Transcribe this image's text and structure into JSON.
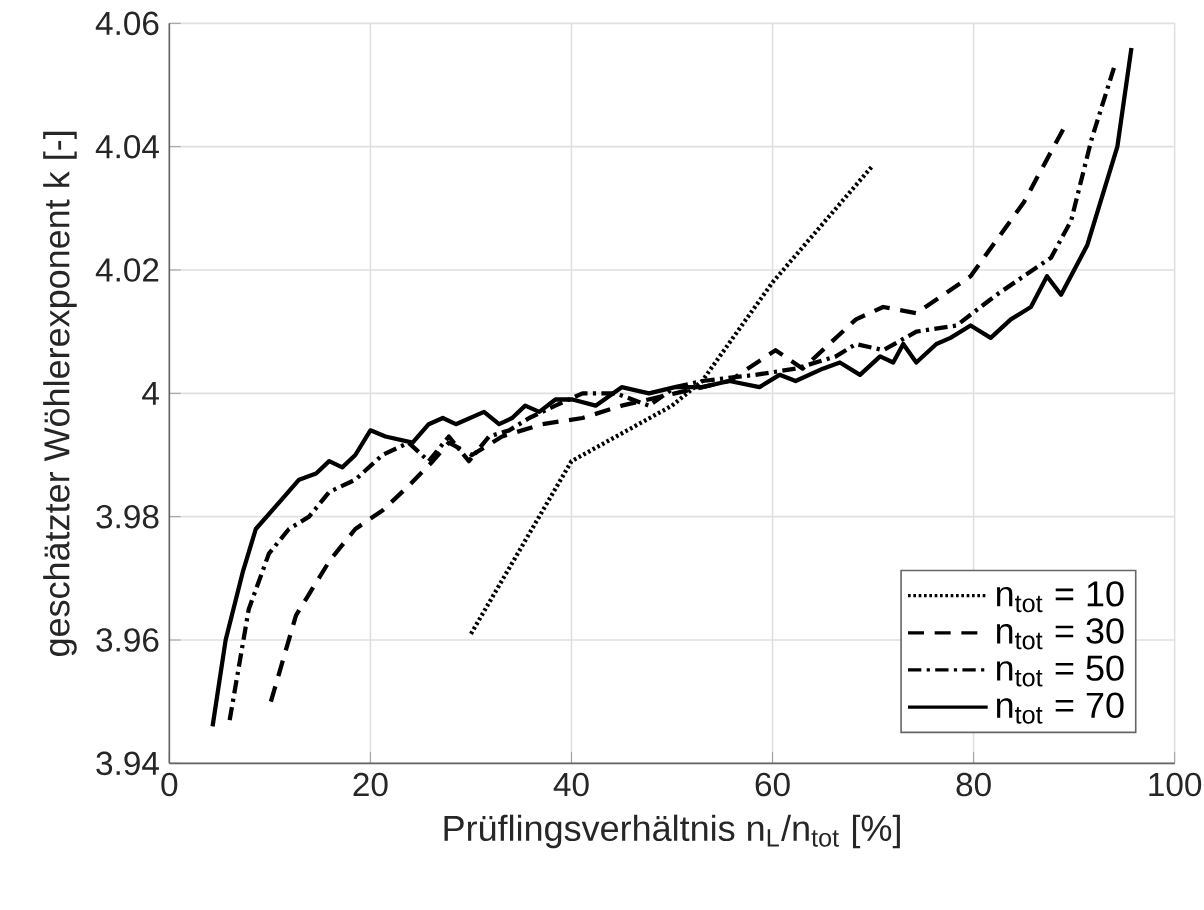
{
  "chart_data": {
    "type": "line",
    "xlabel": "Prüflingsverhältnis n$_{L}$/n$_{tot}$ [%]",
    "ylabel": "geschätzter Wöhlerexponent k [-]",
    "xlim": [
      0,
      100
    ],
    "xticks": [
      0,
      20,
      40,
      60,
      80,
      100
    ],
    "ylim": [
      3.94,
      4.06
    ],
    "yticks": [
      3.94,
      3.96,
      3.98,
      4,
      4.02,
      4.04,
      4.06
    ],
    "grid": true,
    "legend": "bottom right",
    "marker": "none",
    "series": [
      {
        "name": "n$_{tot}$ = 10",
        "color": "#000000",
        "line_style": "dotted",
        "x": [
          30,
          40,
          50,
          53,
          60,
          70
        ],
        "values": [
          3.961,
          3.989,
          3.998,
          4.002,
          4.018,
          4.037
        ]
      },
      {
        "name": "n$_{tot}$ = 30",
        "color": "#000000",
        "line_style": "dashed",
        "x": [
          10.1,
          12.6,
          16,
          18.5,
          21.2,
          23.8,
          26.2,
          27.8,
          30.1,
          33.1,
          37.1,
          41.1,
          45,
          50.3,
          55.7,
          60.3,
          63,
          68.3,
          71,
          74.3,
          79.7,
          85,
          89.3
        ],
        "values": [
          3.95,
          3.964,
          3.973,
          3.978,
          3.981,
          3.985,
          3.989,
          3.992,
          3.99,
          3.993,
          3.995,
          3.996,
          3.998,
          4.0,
          4.002,
          4.007,
          4.004,
          4.012,
          4.014,
          4.013,
          4.019,
          4.031,
          4.044
        ]
      },
      {
        "name": "n$_{tot}$ = 50",
        "color": "#000000",
        "line_style": "dashdotted",
        "x": [
          6,
          7.9,
          9.9,
          11.9,
          13.9,
          15.9,
          18.5,
          21.2,
          23.8,
          25.8,
          27.8,
          29.8,
          31.8,
          33.8,
          35.8,
          38.4,
          41.1,
          44.4,
          47.7,
          50.3,
          53,
          58.3,
          62.3,
          66.3,
          68.3,
          71,
          74.3,
          78.3,
          82.3,
          87.7,
          89.7,
          91.7,
          94
        ],
        "values": [
          3.947,
          3.965,
          3.974,
          3.978,
          3.98,
          3.984,
          3.986,
          3.99,
          3.992,
          3.989,
          3.993,
          3.989,
          3.993,
          3.994,
          3.996,
          3.998,
          4.0,
          4.0,
          3.998,
          4.001,
          4.002,
          4.003,
          4.004,
          4.006,
          4.008,
          4.007,
          4.01,
          4.011,
          4.016,
          4.022,
          4.028,
          4.041,
          4.053
        ]
      },
      {
        "name": "n$_{tot}$ = 70",
        "color": "#000000",
        "line_style": "solid",
        "x": [
          4.3,
          5.6,
          7.3,
          8.6,
          11.3,
          12.9,
          14.6,
          15.9,
          17.2,
          18.5,
          20,
          21.5,
          24.2,
          25.8,
          27.2,
          28.5,
          31.3,
          32.8,
          34.1,
          35.4,
          36.8,
          38.4,
          40.1,
          42.4,
          45,
          47.7,
          50.3,
          53,
          55.7,
          58.7,
          60.7,
          62.3,
          65,
          66.7,
          68.7,
          70.7,
          72,
          73,
          74.3,
          76.3,
          77.7,
          79.7,
          81.7,
          83.7,
          85.7,
          87.3,
          88.7,
          91.3,
          94.3,
          95.7
        ],
        "values": [
          3.946,
          3.96,
          3.971,
          3.978,
          3.983,
          3.986,
          3.987,
          3.989,
          3.988,
          3.99,
          3.994,
          3.993,
          3.992,
          3.995,
          3.996,
          3.995,
          3.997,
          3.995,
          3.996,
          3.998,
          3.997,
          3.999,
          3.999,
          3.998,
          4.001,
          4.0,
          4.001,
          4.001,
          4.002,
          4.001,
          4.003,
          4.002,
          4.004,
          4.005,
          4.003,
          4.006,
          4.005,
          4.008,
          4.005,
          4.008,
          4.009,
          4.011,
          4.009,
          4.012,
          4.014,
          4.019,
          4.016,
          4.024,
          4.04,
          4.056
        ]
      }
    ]
  }
}
